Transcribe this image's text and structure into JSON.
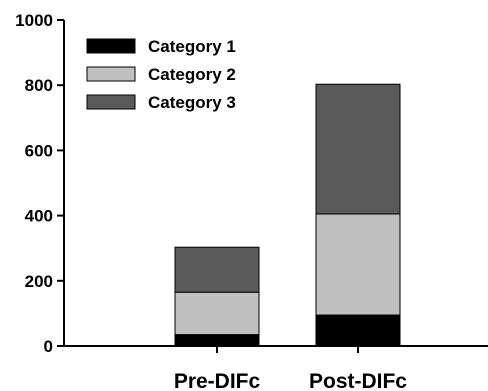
{
  "chart_data": {
    "type": "bar",
    "stacked": true,
    "categories": [
      "Pre-DIFc",
      "Post-DIFc"
    ],
    "series": [
      {
        "name": "Category 1",
        "values": [
          35,
          95
        ],
        "color": "#000000"
      },
      {
        "name": "Category 2",
        "values": [
          130,
          310
        ],
        "color": "#c0c0c0"
      },
      {
        "name": "Category 3",
        "values": [
          138,
          398
        ],
        "color": "#5a5a5a"
      }
    ],
    "ylim": [
      0,
      1000
    ],
    "yticks": [
      0,
      200,
      400,
      600,
      800,
      1000
    ],
    "title": "",
    "xlabel": "",
    "ylabel": "",
    "grid": false,
    "legend": "top-left"
  }
}
